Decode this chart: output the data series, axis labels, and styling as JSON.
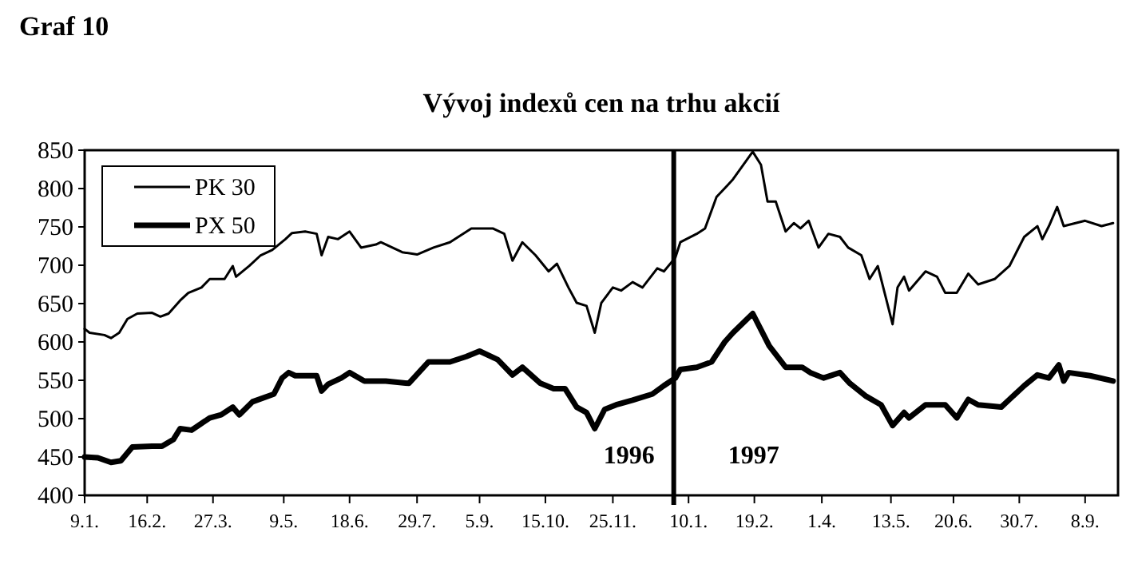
{
  "chart_data": {
    "type": "line",
    "title": "Vývoj indexů cen na trhu akcií",
    "subtitle": "Graf 10",
    "annotations": [
      "1996",
      "1997"
    ],
    "xlim": [
      "1996-01-09",
      "1997-09-28"
    ],
    "xticks": [
      {
        "value": "1996-01-09",
        "label": "9.1."
      },
      {
        "value": "1996-02-16",
        "label": "16.2."
      },
      {
        "value": "1996-03-27",
        "label": "27.3."
      },
      {
        "value": "1996-05-09",
        "label": "9.5."
      },
      {
        "value": "1996-06-18",
        "label": "18.6."
      },
      {
        "value": "1996-07-29",
        "label": "29.7."
      },
      {
        "value": "1996-09-05",
        "label": "5.9."
      },
      {
        "value": "1996-10-15",
        "label": "15.10."
      },
      {
        "value": "1996-11-25",
        "label": "25.11."
      },
      {
        "value": "1997-01-10",
        "label": "10.1."
      },
      {
        "value": "1997-02-19",
        "label": "19.2."
      },
      {
        "value": "1997-04-01",
        "label": "1.4."
      },
      {
        "value": "1997-05-13",
        "label": "13.5."
      },
      {
        "value": "1997-06-20",
        "label": "20.6."
      },
      {
        "value": "1997-07-30",
        "label": "30.7."
      },
      {
        "value": "1997-09-08",
        "label": "8.9."
      }
    ],
    "ylim": [
      400,
      850
    ],
    "yticks": [
      400,
      450,
      500,
      550,
      600,
      650,
      700,
      750,
      800,
      850
    ],
    "grid": false,
    "legend": "top left",
    "marker": "none",
    "line_style": "solid",
    "ref_lines": [
      {
        "axis": "x",
        "value": "1997-01-01",
        "color": "#000000"
      }
    ],
    "series": [
      {
        "name": "PK 30",
        "color": "#000000",
        "x": [
          "1996-01-09",
          "1996-01-12",
          "1996-01-21",
          "1996-01-25",
          "1996-01-30",
          "1996-02-04",
          "1996-02-10",
          "1996-02-19",
          "1996-02-24",
          "1996-02-29",
          "1996-03-07",
          "1996-03-12",
          "1996-03-20",
          "1996-03-25",
          "1996-04-03",
          "1996-04-08",
          "1996-04-10",
          "1996-04-18",
          "1996-04-25",
          "1996-05-02",
          "1996-05-10",
          "1996-05-14",
          "1996-05-22",
          "1996-05-29",
          "1996-06-01",
          "1996-06-05",
          "1996-06-11",
          "1996-06-18",
          "1996-06-25",
          "1996-07-04",
          "1996-07-07",
          "1996-07-20",
          "1996-07-29",
          "1996-08-08",
          "1996-08-18",
          "1996-08-31",
          "1996-09-13",
          "1996-09-20",
          "1996-09-25",
          "1996-10-01",
          "1996-10-09",
          "1996-10-17",
          "1996-10-22",
          "1996-10-29",
          "1996-11-03",
          "1996-11-09",
          "1996-11-14",
          "1996-11-18",
          "1996-11-25",
          "1996-11-30",
          "1996-12-07",
          "1996-12-13",
          "1996-12-22",
          "1996-12-26",
          "1997-01-02",
          "1997-01-05",
          "1997-01-15",
          "1997-01-20",
          "1997-01-27",
          "1997-02-03",
          "1997-02-06",
          "1997-02-18",
          "1997-02-23",
          "1997-02-27",
          "1997-03-04",
          "1997-03-10",
          "1997-03-15",
          "1997-03-19",
          "1997-03-24",
          "1997-03-30",
          "1997-04-05",
          "1997-04-12",
          "1997-04-17",
          "1997-04-25",
          "1997-04-30",
          "1997-05-05",
          "1997-05-10",
          "1997-05-14",
          "1997-05-17",
          "1997-05-21",
          "1997-05-24",
          "1997-06-03",
          "1997-06-10",
          "1997-06-15",
          "1997-06-22",
          "1997-06-29",
          "1997-07-05",
          "1997-07-15",
          "1997-07-24",
          "1997-08-02",
          "1997-08-10",
          "1997-08-13",
          "1997-08-17",
          "1997-08-22",
          "1997-08-26",
          "1997-09-08",
          "1997-09-18",
          "1997-09-25"
        ],
        "values": [
          617,
          612,
          609,
          605,
          612,
          630,
          637,
          638,
          633,
          637,
          654,
          664,
          671,
          682,
          682,
          699,
          685,
          699,
          713,
          720,
          734,
          742,
          744,
          741,
          713,
          737,
          734,
          744,
          723,
          727,
          730,
          717,
          714,
          723,
          730,
          748,
          748,
          741,
          706,
          730,
          713,
          692,
          702,
          671,
          651,
          647,
          612,
          651,
          671,
          667,
          678,
          671,
          696,
          692,
          710,
          730,
          741,
          748,
          789,
          805,
          812,
          848,
          831,
          783,
          783,
          744,
          755,
          748,
          758,
          723,
          741,
          737,
          723,
          713,
          682,
          699,
          657,
          623,
          671,
          685,
          667,
          692,
          685,
          664,
          664,
          689,
          675,
          682,
          699,
          737,
          751,
          734,
          751,
          776,
          751,
          758,
          751,
          755
        ]
      },
      {
        "name": "PX 50",
        "color": "#000000",
        "x": [
          "1996-01-09",
          "1996-01-17",
          "1996-01-25",
          "1996-01-31",
          "1996-02-07",
          "1996-02-19",
          "1996-02-25",
          "1996-03-03",
          "1996-03-07",
          "1996-03-14",
          "1996-03-25",
          "1996-04-01",
          "1996-04-08",
          "1996-04-12",
          "1996-04-20",
          "1996-05-03",
          "1996-05-08",
          "1996-05-12",
          "1996-05-16",
          "1996-05-29",
          "1996-06-01",
          "1996-06-05",
          "1996-06-13",
          "1996-06-18",
          "1996-06-27",
          "1996-07-10",
          "1996-07-24",
          "1996-08-05",
          "1996-08-18",
          "1996-08-28",
          "1996-09-05",
          "1996-09-16",
          "1996-09-25",
          "1996-10-01",
          "1996-10-12",
          "1996-10-20",
          "1996-10-27",
          "1996-11-03",
          "1996-11-09",
          "1996-11-14",
          "1996-11-20",
          "1996-11-27",
          "1996-12-07",
          "1996-12-19",
          "1996-12-26",
          "1997-01-02",
          "1997-01-05",
          "1997-01-15",
          "1997-01-24",
          "1997-02-01",
          "1997-02-06",
          "1997-02-18",
          "1997-02-23",
          "1997-02-28",
          "1997-03-10",
          "1997-03-20",
          "1997-03-25",
          "1997-04-02",
          "1997-04-12",
          "1997-04-18",
          "1997-04-28",
          "1997-05-07",
          "1997-05-14",
          "1997-05-21",
          "1997-05-24",
          "1997-06-03",
          "1997-06-15",
          "1997-06-22",
          "1997-06-29",
          "1997-07-05",
          "1997-07-19",
          "1997-07-24",
          "1997-08-02",
          "1997-08-10",
          "1997-08-17",
          "1997-08-23",
          "1997-08-26",
          "1997-08-29",
          "1997-09-11",
          "1997-09-25"
        ],
        "values": [
          450,
          449,
          443,
          445,
          463,
          464,
          464,
          473,
          487,
          485,
          501,
          505,
          515,
          505,
          522,
          532,
          553,
          560,
          556,
          556,
          536,
          545,
          553,
          560,
          549,
          549,
          546,
          574,
          574,
          581,
          588,
          577,
          557,
          567,
          546,
          539,
          539,
          515,
          508,
          487,
          512,
          518,
          524,
          532,
          543,
          553,
          564,
          567,
          574,
          600,
          612,
          637,
          616,
          595,
          567,
          567,
          560,
          553,
          560,
          546,
          529,
          518,
          491,
          508,
          501,
          518,
          518,
          501,
          525,
          518,
          515,
          525,
          543,
          557,
          553,
          570,
          549,
          560,
          556,
          549
        ]
      }
    ]
  }
}
